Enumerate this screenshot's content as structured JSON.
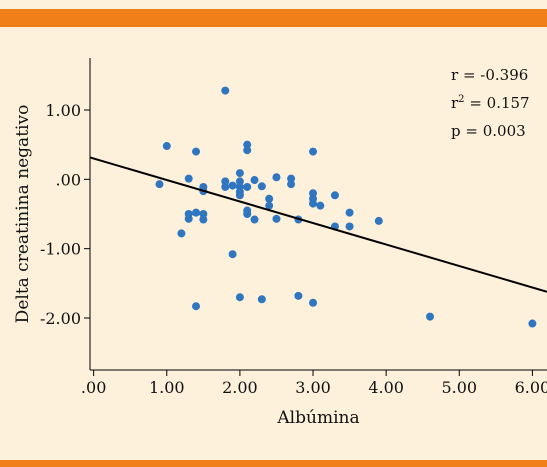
{
  "chart_data": {
    "type": "scatter",
    "xlabel": "Albúmina",
    "ylabel": "Delta creatinina negativo",
    "xlim": [
      -0.05,
      6.2
    ],
    "ylim": [
      -2.75,
      1.75
    ],
    "x_ticks": [
      ".00",
      "1.00",
      "2.00",
      "3.00",
      "4.00",
      "5.00",
      "6.00"
    ],
    "x_tick_values": [
      0,
      1,
      2,
      3,
      4,
      5,
      6
    ],
    "y_ticks": [
      "1.00",
      ".00",
      "-1.00",
      "-2.00"
    ],
    "y_tick_values": [
      1,
      0,
      -1,
      -2
    ],
    "grid": false,
    "annotations": [
      {
        "prefix": "r = ",
        "superscript": "",
        "value": "-0.396"
      },
      {
        "prefix": "r",
        "superscript": "2",
        "value": " = 0.157"
      },
      {
        "prefix": "p = ",
        "superscript": "",
        "value": "0.003"
      }
    ],
    "regression": {
      "intercept": 0.3,
      "slope": -0.31
    },
    "point_color": "#2f75c0",
    "line_color": "#000000",
    "points": [
      {
        "x": 1.8,
        "y": 1.28
      },
      {
        "x": 1.0,
        "y": 0.48
      },
      {
        "x": 1.4,
        "y": 0.4
      },
      {
        "x": 2.1,
        "y": 0.5
      },
      {
        "x": 2.1,
        "y": 0.42
      },
      {
        "x": 3.0,
        "y": 0.4
      },
      {
        "x": 2.0,
        "y": 0.09
      },
      {
        "x": 0.9,
        "y": -0.07
      },
      {
        "x": 1.3,
        "y": 0.01
      },
      {
        "x": 1.5,
        "y": -0.11
      },
      {
        "x": 1.5,
        "y": -0.17
      },
      {
        "x": 1.8,
        "y": -0.03
      },
      {
        "x": 1.8,
        "y": -0.11
      },
      {
        "x": 1.9,
        "y": -0.09
      },
      {
        "x": 2.0,
        "y": -0.03
      },
      {
        "x": 2.0,
        "y": -0.11
      },
      {
        "x": 2.0,
        "y": -0.18
      },
      {
        "x": 2.0,
        "y": -0.23
      },
      {
        "x": 2.1,
        "y": -0.11
      },
      {
        "x": 2.2,
        "y": -0.01
      },
      {
        "x": 2.3,
        "y": -0.1
      },
      {
        "x": 2.5,
        "y": 0.03
      },
      {
        "x": 2.7,
        "y": 0.01
      },
      {
        "x": 2.7,
        "y": -0.07
      },
      {
        "x": 3.0,
        "y": -0.2
      },
      {
        "x": 3.0,
        "y": -0.28
      },
      {
        "x": 3.0,
        "y": -0.35
      },
      {
        "x": 3.1,
        "y": -0.38
      },
      {
        "x": 3.3,
        "y": -0.23
      },
      {
        "x": 3.5,
        "y": -0.48
      },
      {
        "x": 3.5,
        "y": -0.68
      },
      {
        "x": 3.9,
        "y": -0.6
      },
      {
        "x": 2.4,
        "y": -0.28
      },
      {
        "x": 2.4,
        "y": -0.38
      },
      {
        "x": 2.1,
        "y": -0.45
      },
      {
        "x": 2.1,
        "y": -0.5
      },
      {
        "x": 2.2,
        "y": -0.58
      },
      {
        "x": 2.5,
        "y": -0.57
      },
      {
        "x": 2.8,
        "y": -0.58
      },
      {
        "x": 3.3,
        "y": -0.68
      },
      {
        "x": 1.3,
        "y": -0.5
      },
      {
        "x": 1.3,
        "y": -0.57
      },
      {
        "x": 1.4,
        "y": -0.48
      },
      {
        "x": 1.5,
        "y": -0.5
      },
      {
        "x": 1.5,
        "y": -0.58
      },
      {
        "x": 1.2,
        "y": -0.78
      },
      {
        "x": 1.9,
        "y": -1.08
      },
      {
        "x": 1.4,
        "y": -1.83
      },
      {
        "x": 2.0,
        "y": -1.7
      },
      {
        "x": 2.3,
        "y": -1.73
      },
      {
        "x": 2.8,
        "y": -1.68
      },
      {
        "x": 3.0,
        "y": -1.78
      },
      {
        "x": 4.6,
        "y": -1.98
      },
      {
        "x": 6.0,
        "y": -2.08
      }
    ]
  }
}
